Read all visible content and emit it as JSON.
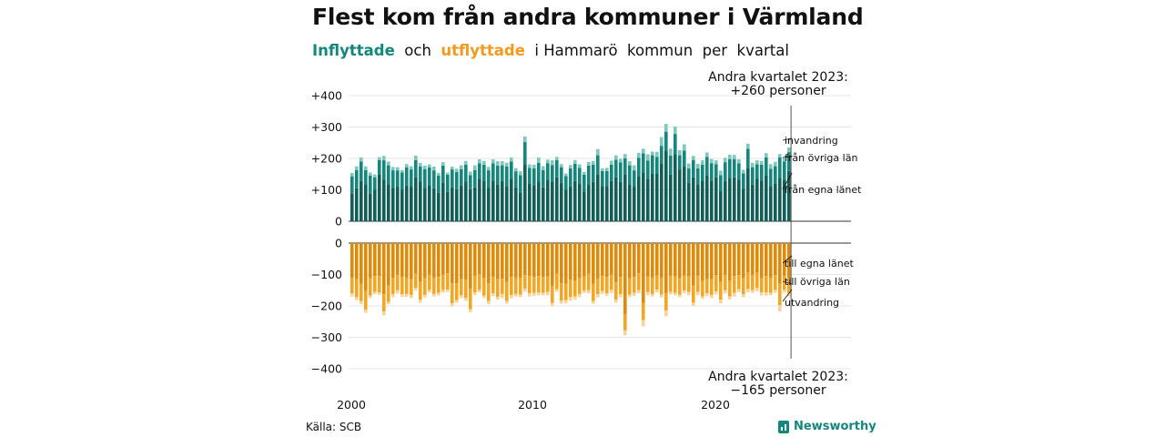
{
  "title": "Flest kom från andra kommuner i Värmland",
  "subtitle": {
    "in_word": "Inflyttade",
    "and_word": "  och  ",
    "out_word": "utflyttade",
    "rest": "  i Hammarö  kommun  per  kvartal"
  },
  "source": "Källa: SCB",
  "brand": "Newsworthy",
  "colors": {
    "in_own": "#0f5f56",
    "in_other": "#13877c",
    "in_immig": "#7fc8bc",
    "out_own": "#e08a0a",
    "out_other": "#f3a623",
    "out_emig": "#f9d39a"
  },
  "chart_data": {
    "type": "bar",
    "stacked": true,
    "x_ticks": [
      "2000",
      "2010",
      "2020"
    ],
    "top_panel": {
      "y_ticks": [
        "+400",
        "+300",
        "+200",
        "+100",
        "0"
      ],
      "ylim": [
        0,
        400
      ],
      "series_labels": [
        "invandring",
        "från övriga län",
        "från egna länet"
      ],
      "annotation": [
        "Andra kvartalet 2023:",
        "+260 personer"
      ],
      "own_county": [
        88,
        105,
        128,
        118,
        88,
        100,
        150,
        133,
        118,
        107,
        110,
        100,
        114,
        110,
        140,
        126,
        106,
        113,
        105,
        90,
        122,
        93,
        108,
        102,
        114,
        126,
        102,
        108,
        135,
        130,
        106,
        130,
        117,
        128,
        112,
        135,
        108,
        92,
        182,
        120,
        115,
        126,
        108,
        132,
        127,
        140,
        122,
        100,
        110,
        128,
        120,
        94,
        118,
        125,
        150,
        112,
        112,
        128,
        140,
        125,
        150,
        118,
        110,
        142,
        156,
        135,
        152,
        152,
        185,
        225,
        148,
        214,
        165,
        175,
        122,
        140,
        118,
        130,
        145,
        130,
        140,
        98,
        128,
        138,
        140,
        133,
        104,
        168,
        117,
        136,
        130,
        145,
        112,
        120,
        138,
        133,
        160
      ],
      "other_counties": [
        55,
        58,
        62,
        45,
        57,
        40,
        45,
        61,
        60,
        55,
        52,
        55,
        58,
        55,
        55,
        48,
        60,
        58,
        57,
        55,
        55,
        55,
        57,
        55,
        52,
        54,
        45,
        55,
        50,
        50,
        56,
        54,
        60,
        50,
        62,
        55,
        51,
        55,
        70,
        50,
        53,
        60,
        55,
        53,
        52,
        55,
        50,
        44,
        58,
        55,
        50,
        54,
        59,
        55,
        60,
        48,
        48,
        52,
        56,
        62,
        50,
        60,
        52,
        60,
        60,
        58,
        58,
        53,
        55,
        60,
        61,
        64,
        45,
        50,
        46,
        55,
        50,
        50,
        60,
        55,
        42,
        49,
        60,
        60,
        58,
        51,
        48,
        63,
        55,
        45,
        50,
        58,
        55,
        55,
        65,
        57,
        60
      ],
      "immigration": [
        11,
        12,
        13,
        12,
        10,
        9,
        9,
        14,
        12,
        11,
        10,
        8,
        10,
        10,
        14,
        12,
        11,
        10,
        12,
        9,
        11,
        7,
        9,
        10,
        12,
        12,
        11,
        15,
        12,
        12,
        11,
        13,
        14,
        13,
        12,
        13,
        10,
        12,
        18,
        11,
        12,
        17,
        12,
        11,
        15,
        10,
        10,
        8,
        11,
        12,
        11,
        9,
        12,
        12,
        20,
        8,
        10,
        13,
        14,
        12,
        14,
        13,
        16,
        16,
        15,
        20,
        12,
        16,
        28,
        25,
        22,
        23,
        16,
        20,
        16,
        13,
        15,
        14,
        14,
        13,
        12,
        14,
        14,
        14,
        13,
        13,
        12,
        16,
        14,
        13,
        12,
        14,
        15,
        14,
        11,
        12,
        15
      ]
    },
    "bottom_panel": {
      "y_ticks": [
        "0",
        "−100",
        "−200",
        "−300",
        "−400"
      ],
      "ylim": [
        -400,
        0
      ],
      "series_labels": [
        "till egna länet",
        "till övriga län",
        "utvandring"
      ],
      "annotation": [
        "Andra kvartalet 2023:",
        "−165 personer"
      ],
      "own_county": [
        110,
        115,
        130,
        152,
        112,
        105,
        105,
        163,
        135,
        110,
        100,
        108,
        110,
        115,
        97,
        124,
        110,
        100,
        110,
        108,
        100,
        96,
        128,
        128,
        113,
        117,
        146,
        103,
        99,
        112,
        128,
        108,
        115,
        114,
        124,
        108,
        110,
        110,
        102,
        105,
        108,
        105,
        108,
        106,
        136,
        97,
        128,
        130,
        117,
        120,
        110,
        106,
        98,
        130,
        113,
        105,
        108,
        101,
        125,
        108,
        226,
        112,
        108,
        96,
        190,
        106,
        110,
        103,
        111,
        160,
        104,
        106,
        112,
        103,
        106,
        135,
        104,
        120,
        115,
        115,
        102,
        124,
        100,
        120,
        105,
        102,
        112,
        95,
        100,
        95,
        112,
        105,
        110,
        102,
        130,
        104,
        110
      ],
      "other_counties": [
        50,
        57,
        55,
        60,
        55,
        50,
        52,
        55,
        52,
        52,
        50,
        55,
        52,
        50,
        45,
        56,
        55,
        50,
        52,
        50,
        50,
        52,
        64,
        54,
        53,
        57,
        64,
        54,
        50,
        55,
        57,
        52,
        56,
        48,
        60,
        58,
        52,
        54,
        43,
        55,
        50,
        52,
        50,
        50,
        55,
        50,
        55,
        52,
        55,
        50,
        52,
        45,
        52,
        55,
        50,
        48,
        52,
        48,
        55,
        55,
        52,
        52,
        50,
        54,
        55,
        50,
        52,
        45,
        53,
        55,
        51,
        52,
        52,
        48,
        50,
        55,
        52,
        50,
        45,
        50,
        52,
        56,
        50,
        50,
        53,
        45,
        51,
        52,
        50,
        48,
        45,
        52,
        48,
        47,
        68,
        45,
        50
      ],
      "emigration": [
        10,
        10,
        9,
        10,
        8,
        7,
        8,
        12,
        8,
        10,
        10,
        8,
        9,
        10,
        9,
        10,
        8,
        7,
        8,
        9,
        8,
        8,
        10,
        8,
        9,
        10,
        10,
        9,
        8,
        8,
        10,
        9,
        9,
        13,
        9,
        10,
        8,
        8,
        10,
        10,
        10,
        9,
        8,
        10,
        10,
        8,
        10,
        10,
        12,
        10,
        10,
        8,
        10,
        8,
        10,
        9,
        8,
        10,
        10,
        10,
        16,
        8,
        10,
        9,
        20,
        10,
        8,
        9,
        9,
        18,
        8,
        8,
        8,
        8,
        10,
        10,
        10,
        8,
        9,
        10,
        9,
        12,
        10,
        10,
        12,
        9,
        9,
        10,
        8,
        10,
        10,
        10,
        8,
        9,
        20,
        8,
        10
      ]
    }
  }
}
